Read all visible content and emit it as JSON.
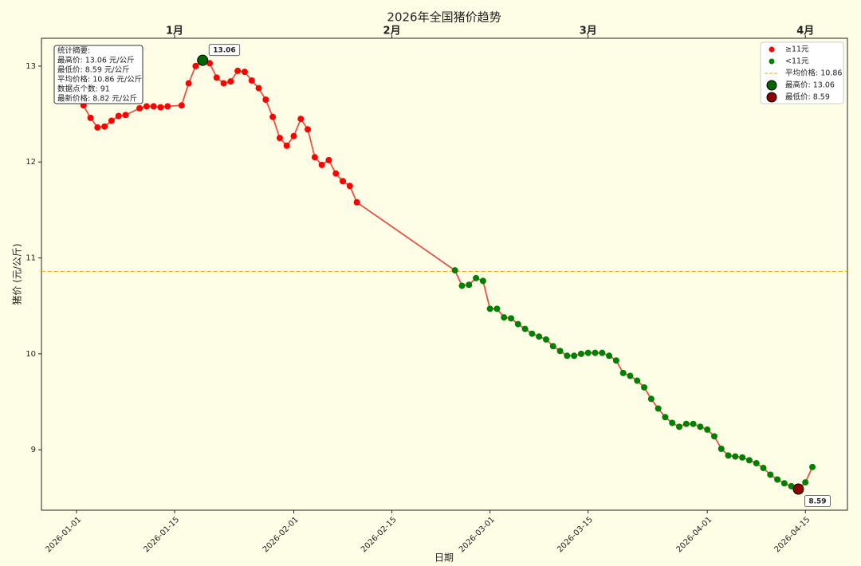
{
  "chart_data": {
    "type": "line",
    "title": "2026年全国猪价趋势",
    "xlabel": "日期",
    "ylabel": "猪价 (元/公斤)",
    "x": [
      "2026-01-01",
      "2026-01-02",
      "2026-01-03",
      "2026-01-04",
      "2026-01-05",
      "2026-01-06",
      "2026-01-07",
      "2026-01-08",
      "2026-01-10",
      "2026-01-11",
      "2026-01-12",
      "2026-01-13",
      "2026-01-14",
      "2026-01-16",
      "2026-01-17",
      "2026-01-18",
      "2026-01-19",
      "2026-01-20",
      "2026-01-21",
      "2026-01-22",
      "2026-01-23",
      "2026-01-24",
      "2026-01-25",
      "2026-01-26",
      "2026-01-27",
      "2026-01-28",
      "2026-01-29",
      "2026-01-30",
      "2026-01-31",
      "2026-02-01",
      "2026-02-02",
      "2026-02-03",
      "2026-02-04",
      "2026-02-05",
      "2026-02-06",
      "2026-02-07",
      "2026-02-08",
      "2026-02-09",
      "2026-02-10",
      "2026-02-24",
      "2026-02-25",
      "2026-02-26",
      "2026-02-27",
      "2026-02-28",
      "2026-03-01",
      "2026-03-02",
      "2026-03-03",
      "2026-03-04",
      "2026-03-05",
      "2026-03-06",
      "2026-03-07",
      "2026-03-08",
      "2026-03-09",
      "2026-03-10",
      "2026-03-11",
      "2026-03-12",
      "2026-03-13",
      "2026-03-14",
      "2026-03-15",
      "2026-03-16",
      "2026-03-17",
      "2026-03-18",
      "2026-03-19",
      "2026-03-20",
      "2026-03-21",
      "2026-03-22",
      "2026-03-23",
      "2026-03-24",
      "2026-03-25",
      "2026-03-26",
      "2026-03-27",
      "2026-03-28",
      "2026-03-29",
      "2026-03-30",
      "2026-03-31",
      "2026-04-01",
      "2026-04-02",
      "2026-04-03",
      "2026-04-04",
      "2026-04-05",
      "2026-04-06",
      "2026-04-07",
      "2026-04-08",
      "2026-04-09",
      "2026-04-10",
      "2026-04-11",
      "2026-04-12",
      "2026-04-13",
      "2026-04-14",
      "2026-04-15",
      "2026-04-16"
    ],
    "series": [
      {
        "name": "猪价",
        "color": "#e8524a",
        "values": [
          12.7,
          12.59,
          12.46,
          12.36,
          12.37,
          12.43,
          12.48,
          12.49,
          12.56,
          12.58,
          12.58,
          12.57,
          12.58,
          12.59,
          12.82,
          13.0,
          13.06,
          13.03,
          12.88,
          12.82,
          12.84,
          12.95,
          12.94,
          12.85,
          12.77,
          12.65,
          12.47,
          12.25,
          12.17,
          12.27,
          12.45,
          12.34,
          12.05,
          11.97,
          12.02,
          11.88,
          11.8,
          11.75,
          11.58,
          10.87,
          10.71,
          10.72,
          10.79,
          10.76,
          10.47,
          10.47,
          10.38,
          10.37,
          10.31,
          10.26,
          10.21,
          10.18,
          10.15,
          10.08,
          10.03,
          9.98,
          9.98,
          10.0,
          10.01,
          10.01,
          10.01,
          9.98,
          9.93,
          9.8,
          9.77,
          9.72,
          9.65,
          9.53,
          9.43,
          9.34,
          9.28,
          9.24,
          9.27,
          9.27,
          9.24,
          9.21,
          9.14,
          9.01,
          8.94,
          8.93,
          8.92,
          8.89,
          8.86,
          8.81,
          8.74,
          8.69,
          8.65,
          8.62,
          8.59,
          8.66,
          8.82
        ]
      }
    ],
    "threshold": 11,
    "above": {
      "name": "≥11元",
      "color": "#ff0000"
    },
    "below": {
      "name": "<11元",
      "color": "#008000"
    },
    "mean_line": {
      "value": 10.86,
      "label": "平均价格: 10.86",
      "color": "#ffa500"
    },
    "annotations": [
      {
        "x": "2026-01-19",
        "y": 13.06,
        "text": "13.06",
        "legend": "最高价: 13.06",
        "color": "#006400"
      },
      {
        "x": "2026-04-14",
        "y": 8.59,
        "text": "8.59",
        "legend": "最低价: 8.59",
        "color": "#8b0000"
      }
    ],
    "stats_box": [
      "统计摘要:",
      "最高价: 13.06 元/公斤",
      "最低价: 8.59 元/公斤",
      "平均价格: 10.86 元/公斤",
      "数据点个数: 91",
      "最新价格: 8.82 元/公斤"
    ],
    "legend": "upper right",
    "xlim": [
      "2025-12-27",
      "2026-04-21"
    ],
    "xticks": [
      "2026-01-01",
      "2026-01-15",
      "2026-02-01",
      "2026-02-15",
      "2026-03-01",
      "2026-03-15",
      "2026-04-01",
      "2026-04-15"
    ],
    "top_ticks": [
      {
        "value": "2026-01-15",
        "label": "1月"
      },
      {
        "value": "2026-02-15",
        "label": "2月"
      },
      {
        "value": "2026-03-15",
        "label": "3月"
      },
      {
        "value": "2026-04-15",
        "label": "4月"
      }
    ],
    "ylim": [
      8.37,
      13.29
    ],
    "yticks": [
      9,
      10,
      11,
      12,
      13
    ]
  }
}
